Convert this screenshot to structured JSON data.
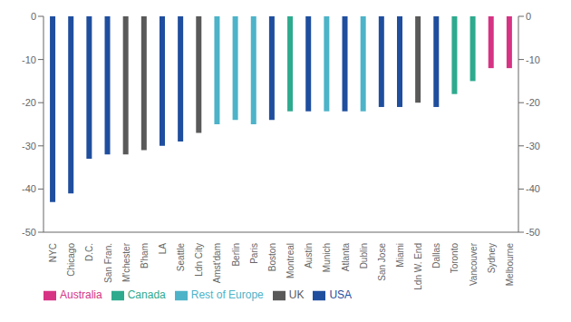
{
  "chart_data": {
    "type": "bar",
    "categories": [
      "NYC",
      "Chicago",
      "D.C.",
      "San Fran.",
      "M'chester",
      "B'ham",
      "LA",
      "Seattle",
      "Ldn City",
      "Amst'dam",
      "Berlin",
      "Paris",
      "Boston",
      "Montreal",
      "Austin",
      "Munich",
      "Atlanta",
      "Dublin",
      "San Jose",
      "Miami",
      "Ldn W. End",
      "Dallas",
      "Toronto",
      "Vancouver",
      "Sydney",
      "Melbourne"
    ],
    "series": [
      {
        "name": "USA",
        "color": "#1f4e9e",
        "values": [
          -43,
          -41,
          -33,
          -32,
          null,
          null,
          -30,
          -29,
          null,
          null,
          null,
          null,
          -24,
          null,
          -22,
          null,
          -22,
          null,
          -21,
          -21,
          null,
          -21,
          null,
          null,
          null,
          null
        ]
      },
      {
        "name": "Canada",
        "color": "#2eaa8e",
        "values": [
          null,
          null,
          null,
          null,
          null,
          null,
          null,
          null,
          null,
          null,
          null,
          null,
          null,
          -22,
          null,
          null,
          null,
          null,
          null,
          null,
          null,
          null,
          -18,
          -15,
          null,
          null
        ]
      },
      {
        "name": "UK",
        "color": "#595959",
        "values": [
          null,
          null,
          null,
          null,
          -32,
          -31,
          null,
          null,
          -27,
          null,
          null,
          null,
          null,
          null,
          null,
          null,
          null,
          null,
          null,
          null,
          -20,
          null,
          null,
          null,
          null,
          null
        ]
      },
      {
        "name": "Rest of Europe",
        "color": "#4db3c8",
        "values": [
          null,
          null,
          null,
          null,
          null,
          null,
          null,
          null,
          null,
          -25,
          -24,
          -25,
          null,
          null,
          null,
          -22,
          null,
          -22,
          null,
          null,
          null,
          null,
          null,
          null,
          null,
          null
        ]
      },
      {
        "name": "Australia",
        "color": "#d63384",
        "values": [
          null,
          null,
          null,
          null,
          null,
          null,
          null,
          null,
          null,
          null,
          null,
          null,
          null,
          null,
          null,
          null,
          null,
          null,
          null,
          null,
          null,
          null,
          null,
          null,
          -12,
          -12
        ]
      }
    ],
    "stacked": true,
    "ylim": [
      -50,
      0
    ],
    "yticks": [
      0,
      -10,
      -20,
      -30,
      -40,
      -50
    ],
    "y2lim": [
      -50,
      0
    ],
    "y2ticks": [
      0,
      -10,
      -20,
      -30,
      -40,
      -50
    ],
    "grid": false,
    "legend": "lower left"
  }
}
